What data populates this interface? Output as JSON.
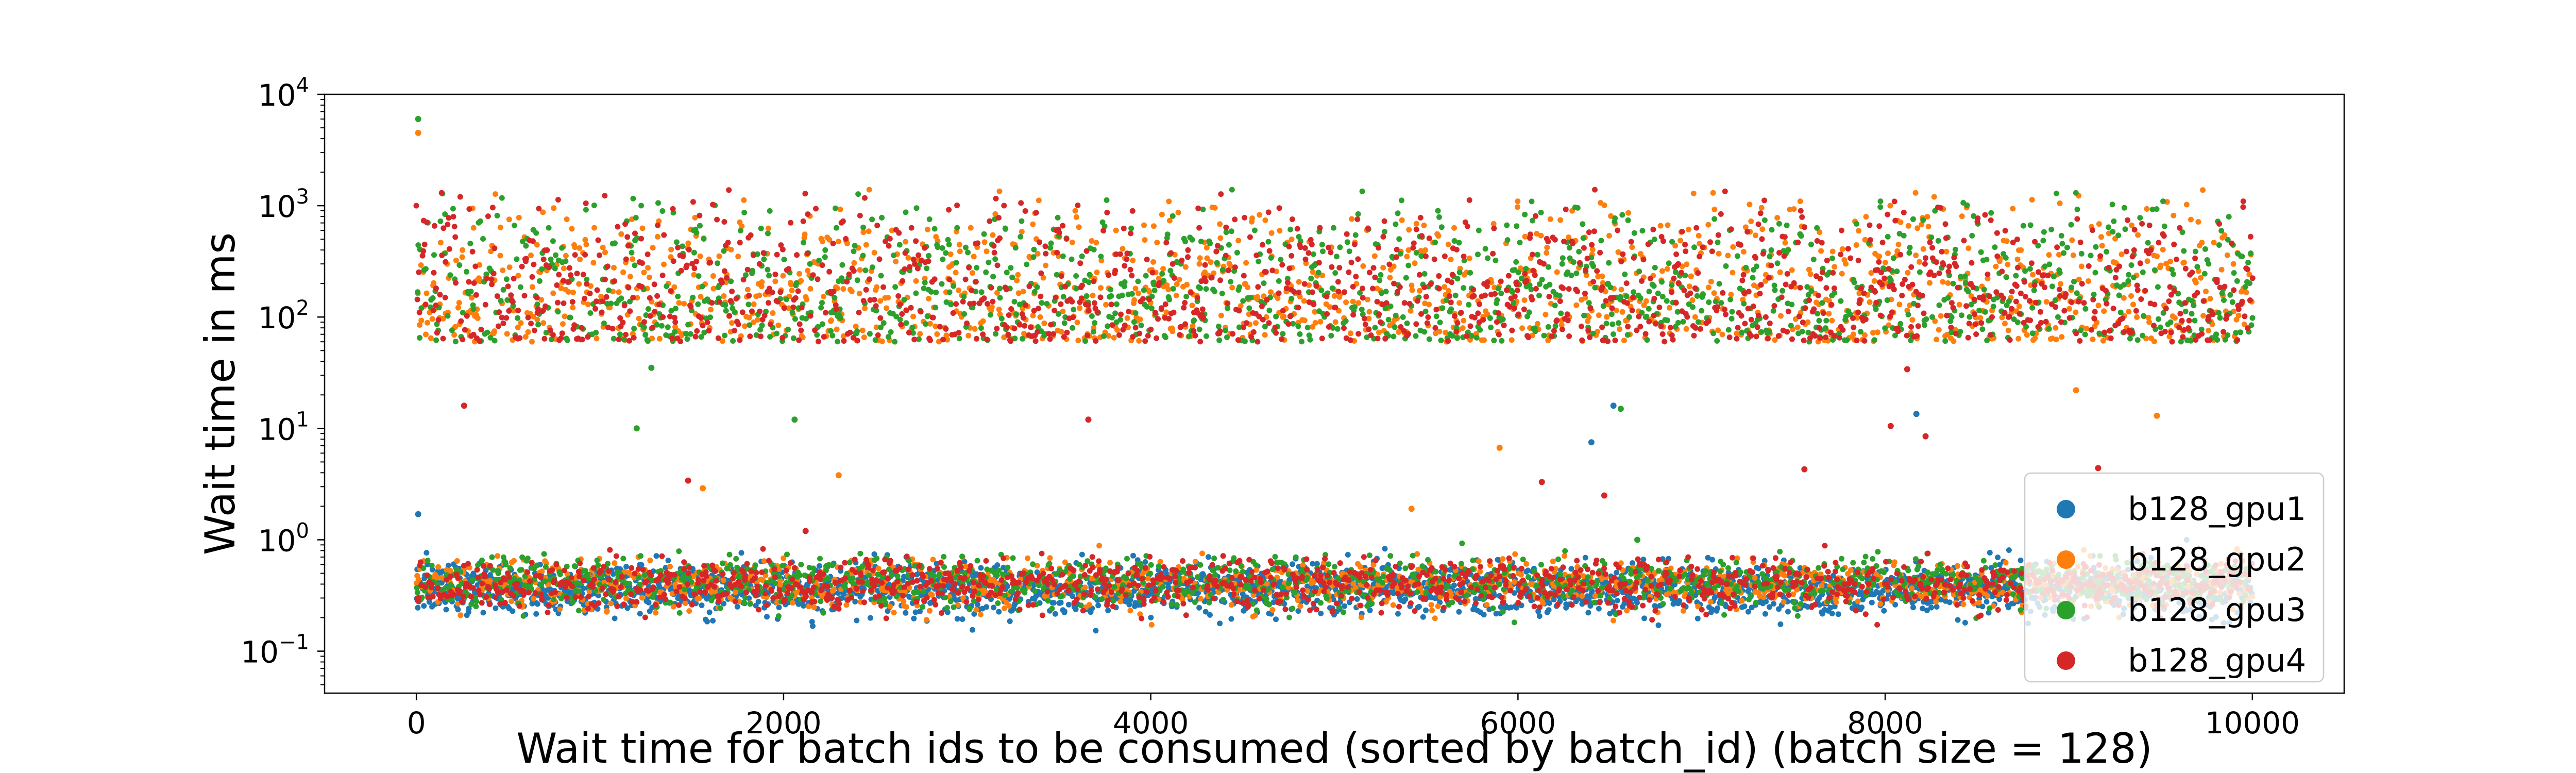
{
  "chart_data": {
    "type": "scatter",
    "xlabel": "Wait time for batch ids to be consumed (sorted by batch_id) (batch size = 128)",
    "ylabel": "Wait time in ms",
    "xscale": "linear",
    "yscale": "log",
    "xlim": [
      -500,
      10500
    ],
    "ylim": [
      0.042,
      10000
    ],
    "x_ticks": [
      0,
      2000,
      4000,
      6000,
      8000,
      10000
    ],
    "y_ticks": [
      {
        "value": 0.1,
        "base": "10",
        "exp": "−1"
      },
      {
        "value": 1,
        "base": "10",
        "exp": "0"
      },
      {
        "value": 10,
        "base": "10",
        "exp": "1"
      },
      {
        "value": 100,
        "base": "10",
        "exp": "2"
      },
      {
        "value": 1000,
        "base": "10",
        "exp": "3"
      },
      {
        "value": 10000,
        "base": "10",
        "exp": "4"
      }
    ],
    "grid": false,
    "legend_position": "bottom-right",
    "series": [
      {
        "name": "b128_gpu1",
        "color": "#1f77b4",
        "high_fraction": 0.0,
        "low_center": 0.36,
        "start_outlier": 1.7
      },
      {
        "name": "b128_gpu2",
        "color": "#ff7f0e",
        "high_fraction": 0.5,
        "low_center": 0.4,
        "start_outlier": 4500
      },
      {
        "name": "b128_gpu3",
        "color": "#2ca02c",
        "high_fraction": 0.5,
        "low_center": 0.42,
        "start_outlier": 6000
      },
      {
        "name": "b128_gpu4",
        "color": "#d62728",
        "high_fraction": 0.5,
        "low_center": 0.4,
        "start_outlier": 0.3
      }
    ],
    "points_per_series": 10000,
    "high_band_range": [
      60,
      1400
    ],
    "low_band_range": [
      0.1,
      1.0
    ],
    "outliers": [
      {
        "series": "b128_gpu4",
        "x": 260,
        "y": 16
      },
      {
        "series": "b128_gpu3",
        "x": 1200,
        "y": 10
      },
      {
        "series": "b128_gpu3",
        "x": 1280,
        "y": 35
      },
      {
        "series": "b128_gpu4",
        "x": 1480,
        "y": 3.4
      },
      {
        "series": "b128_gpu2",
        "x": 1560,
        "y": 2.9
      },
      {
        "series": "b128_gpu3",
        "x": 2060,
        "y": 12
      },
      {
        "series": "b128_gpu4",
        "x": 2120,
        "y": 1.2
      },
      {
        "series": "b128_gpu2",
        "x": 2300,
        "y": 3.8
      },
      {
        "series": "b128_gpu4",
        "x": 3660,
        "y": 12
      },
      {
        "series": "b128_gpu2",
        "x": 5420,
        "y": 1.9
      },
      {
        "series": "b128_gpu2",
        "x": 5900,
        "y": 6.7
      },
      {
        "series": "b128_gpu4",
        "x": 6130,
        "y": 3.3
      },
      {
        "series": "b128_gpu1",
        "x": 6400,
        "y": 7.5
      },
      {
        "series": "b128_gpu4",
        "x": 6470,
        "y": 2.5
      },
      {
        "series": "b128_gpu1",
        "x": 6520,
        "y": 16
      },
      {
        "series": "b128_gpu3",
        "x": 6560,
        "y": 15
      },
      {
        "series": "b128_gpu3",
        "x": 6650,
        "y": 1.0
      },
      {
        "series": "b128_gpu4",
        "x": 7560,
        "y": 4.3
      },
      {
        "series": "b128_gpu4",
        "x": 8030,
        "y": 10.5
      },
      {
        "series": "b128_gpu4",
        "x": 8120,
        "y": 34
      },
      {
        "series": "b128_gpu1",
        "x": 8170,
        "y": 13.5
      },
      {
        "series": "b128_gpu4",
        "x": 8220,
        "y": 8.5
      },
      {
        "series": "b128_gpu2",
        "x": 9040,
        "y": 22
      },
      {
        "series": "b128_gpu4",
        "x": 9160,
        "y": 4.4
      },
      {
        "series": "b128_gpu2",
        "x": 9480,
        "y": 13
      }
    ]
  }
}
